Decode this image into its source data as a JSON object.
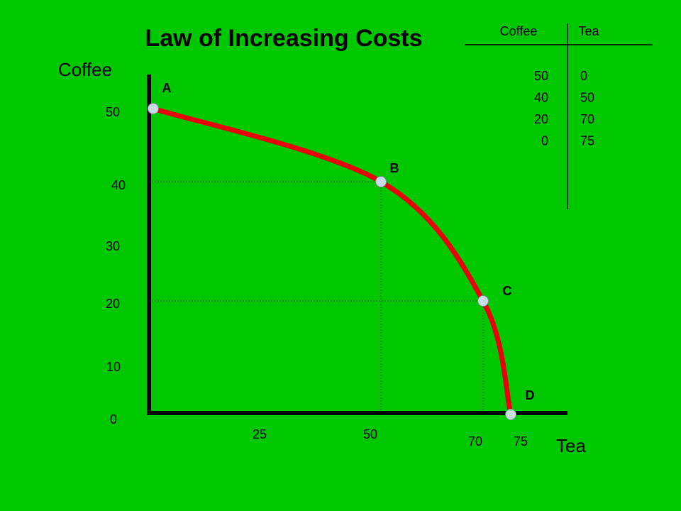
{
  "chart_data": {
    "type": "line",
    "title": "Law of Increasing Costs",
    "xlabel": "Tea",
    "ylabel": "Coffee",
    "y_ticks": [
      "0",
      "10",
      "20",
      "30",
      "40",
      "50"
    ],
    "x_ticks": [
      "25",
      "50",
      "70",
      "75"
    ],
    "points": [
      {
        "label": "A",
        "tea": 0,
        "coffee": 50
      },
      {
        "label": "B",
        "tea": 50,
        "coffee": 40
      },
      {
        "label": "C",
        "tea": 70,
        "coffee": 20
      },
      {
        "label": "D",
        "tea": 75,
        "coffee": 0
      }
    ],
    "curve_color": "#e8000b",
    "background_color": "#00c800",
    "point_color": "#c8dde8",
    "table": {
      "headers": [
        "Coffee",
        "Tea"
      ],
      "rows": [
        [
          "50",
          "0"
        ],
        [
          "40",
          "50"
        ],
        [
          "20",
          "70"
        ],
        [
          "0",
          "75"
        ]
      ]
    }
  }
}
